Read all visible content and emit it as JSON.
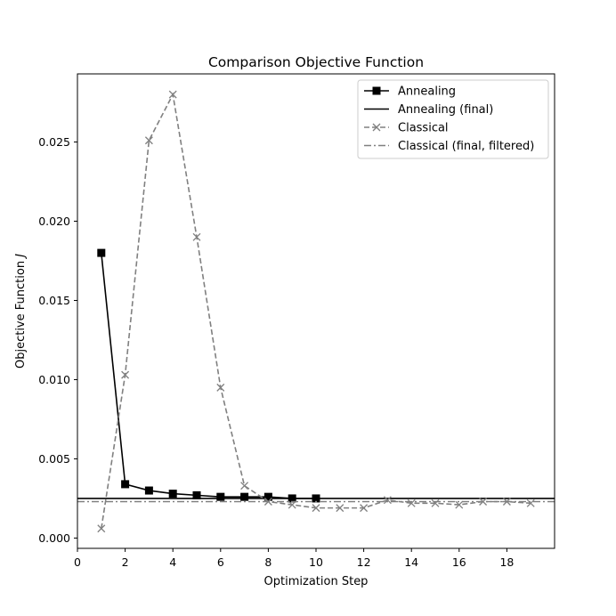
{
  "chart_data": {
    "type": "line",
    "title": "Comparison Objective Function",
    "xlabel": "Optimization Step",
    "ylabel": "Objective Function J",
    "xlim": [
      0,
      20
    ],
    "ylim": [
      -0.00065,
      0.0293
    ],
    "xticks": [
      0,
      2,
      4,
      6,
      8,
      10,
      12,
      14,
      16,
      18
    ],
    "xtick_labels": [
      "0",
      "2",
      "4",
      "6",
      "8",
      "10",
      "12",
      "14",
      "16",
      "18"
    ],
    "yticks": [
      0.0,
      0.005,
      0.01,
      0.015,
      0.02,
      0.025
    ],
    "ytick_labels": [
      "0.000",
      "0.005",
      "0.010",
      "0.015",
      "0.020",
      "0.025"
    ],
    "grid": false,
    "legend_position": "upper right",
    "series": [
      {
        "name": "Annealing",
        "kind": "line",
        "color": "#000000",
        "linestyle": "solid",
        "marker": "square",
        "x": [
          1,
          2,
          3,
          4,
          5,
          6,
          7,
          8,
          9,
          10
        ],
        "y": [
          0.018,
          0.0034,
          0.003,
          0.0028,
          0.0027,
          0.0026,
          0.0026,
          0.0026,
          0.0025,
          0.0025
        ]
      },
      {
        "name": "Annealing (final)",
        "kind": "hline",
        "color": "#000000",
        "linestyle": "solid",
        "y": 0.0025
      },
      {
        "name": "Classical",
        "kind": "line",
        "color": "#808080",
        "linestyle": "dashed",
        "marker": "x",
        "x": [
          1,
          2,
          3,
          4,
          5,
          6,
          7,
          8,
          9,
          10,
          11,
          12,
          13,
          14,
          15,
          16,
          17,
          18,
          19
        ],
        "y": [
          0.0006,
          0.0103,
          0.0251,
          0.028,
          0.019,
          0.0095,
          0.0033,
          0.0023,
          0.0021,
          0.0019,
          0.0019,
          0.0019,
          0.0024,
          0.0022,
          0.0022,
          0.0021,
          0.0023,
          0.0023,
          0.0022
        ]
      },
      {
        "name": "Classical (final, filtered)",
        "kind": "hline",
        "color": "#808080",
        "linestyle": "dashdot",
        "y": 0.0023
      }
    ]
  }
}
